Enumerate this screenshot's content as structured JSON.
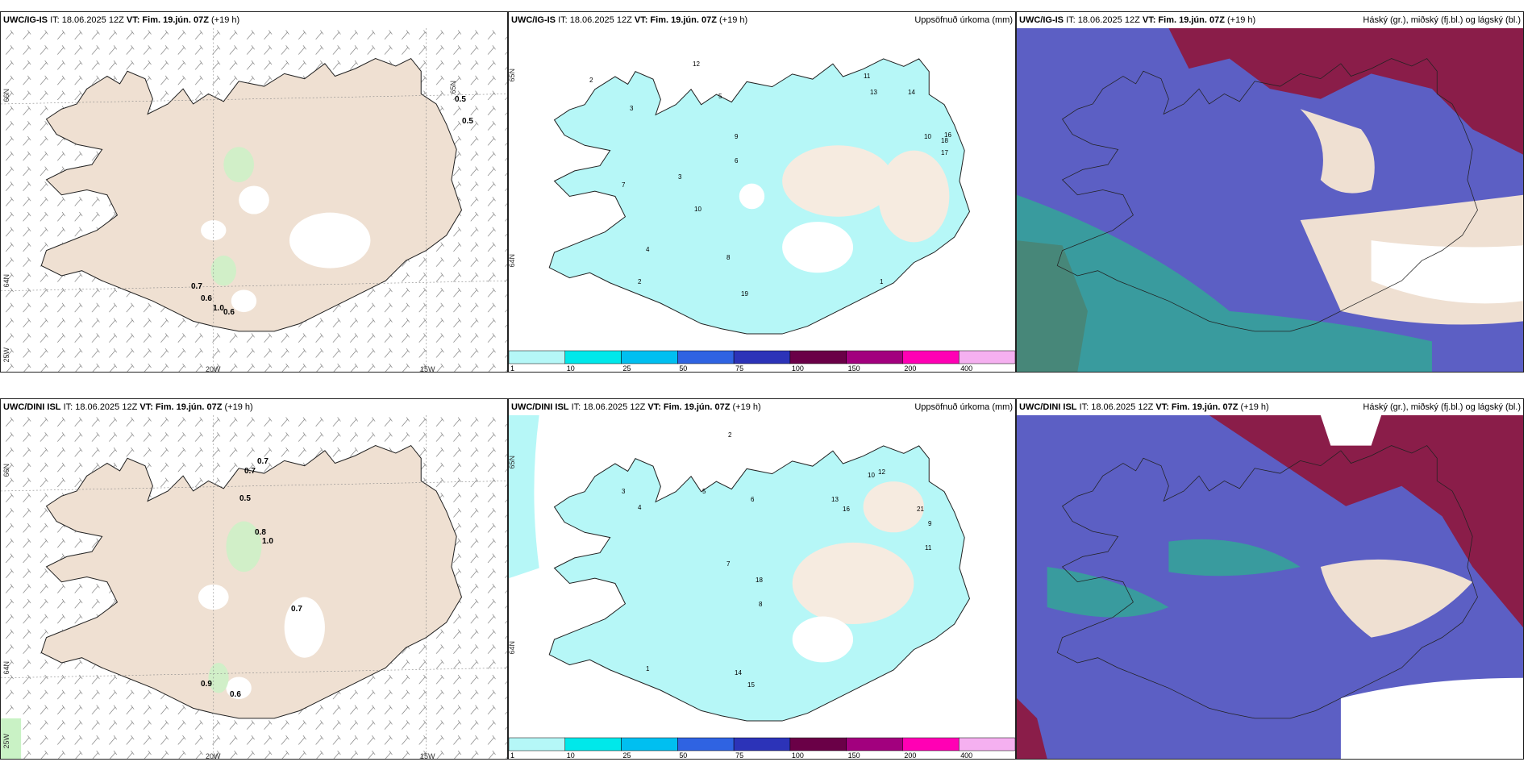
{
  "colors": {
    "land": "#efe0d2",
    "cyan_precip": "#b6f7f7",
    "green_precip": "#bff2bf",
    "cloud_high": "#8a1d49",
    "cloud_mid": "#5c5fc4",
    "cloud_low": "#2bb58e"
  },
  "top_row": {
    "wind": {
      "model": "UWC/IG-IS",
      "issue": "IT: 18.06.2025 12Z",
      "vt": "VT: Fim. 19.jún. 07Z",
      "lead": "(+19 h)",
      "lat_labels": [
        "66N",
        "64N",
        "65N"
      ],
      "lon_labels": [
        "20W",
        "15W",
        "25W"
      ],
      "values": [
        "0.5",
        "0.5",
        "0.7",
        "0.6",
        "1.0",
        "0.6"
      ]
    },
    "precip": {
      "model": "UWC/IG-IS",
      "issue": "IT: 18.06.2025 12Z",
      "vt": "VT: Fim. 19.jún. 07Z",
      "lead": "(+19 h)",
      "title": "Uppsöfnuð úrkoma (mm)",
      "lat_labels": [
        "65N",
        "64N"
      ],
      "values": [
        "2",
        "3",
        "5",
        "6",
        "11",
        "13",
        "14",
        "10",
        "18",
        "17",
        "9",
        "1",
        "2",
        "3",
        "4",
        "7",
        "8",
        "10",
        "16",
        "19",
        "12"
      ]
    },
    "clouds": {
      "model": "UWC/IG-IS",
      "issue": "IT: 18.06.2025 12Z",
      "vt": "VT: Fim. 19.jún. 07Z",
      "lead": "(+19 h)",
      "title": "Háský (gr.), miðský (fj.bl.) og lágský (bl.)"
    }
  },
  "bottom_row": {
    "wind": {
      "model": "UWC/DINI ISL",
      "issue": "IT: 18.06.2025 12Z",
      "vt": "VT: Fim. 19.jún. 07Z",
      "lead": "(+19 h)",
      "lat_labels": [
        "66N",
        "64N",
        "25W"
      ],
      "lon_labels": [
        "20W",
        "15W"
      ],
      "values": [
        "0.7",
        "0.7",
        "0.5",
        "0.8",
        "1.0",
        "0.7",
        "0.9",
        "0.6"
      ]
    },
    "precip": {
      "model": "UWC/DINI ISL",
      "issue": "IT: 18.06.2025 12Z",
      "vt": "VT: Fim. 19.jún. 07Z",
      "lead": "(+19 h)",
      "title": "Uppsöfnuð úrkoma (mm)",
      "lat_labels": [
        "65N",
        "64N"
      ],
      "values": [
        "2",
        "3",
        "4",
        "5",
        "6",
        "10",
        "12",
        "13",
        "16",
        "21",
        "9",
        "11",
        "1",
        "7",
        "8",
        "18",
        "14",
        "15"
      ]
    },
    "clouds": {
      "model": "UWC/DINI ISL",
      "issue": "IT: 18.06.2025 12Z",
      "vt": "VT: Fim. 19.jún. 07Z",
      "lead": "(+19 h)",
      "title": "Háský (gr.), miðský (fj.bl.) og lágský (bl.)"
    }
  },
  "colorbar": {
    "labels": [
      "1",
      "10",
      "25",
      "50",
      "75",
      "100",
      "150",
      "200",
      "400"
    ],
    "colors": [
      "#b5f7f7",
      "#00e8ea",
      "#00bff0",
      "#2f63e2",
      "#2c33b8",
      "#6a0047",
      "#a2007e",
      "#ff00b4",
      "#f5b0f0"
    ]
  }
}
